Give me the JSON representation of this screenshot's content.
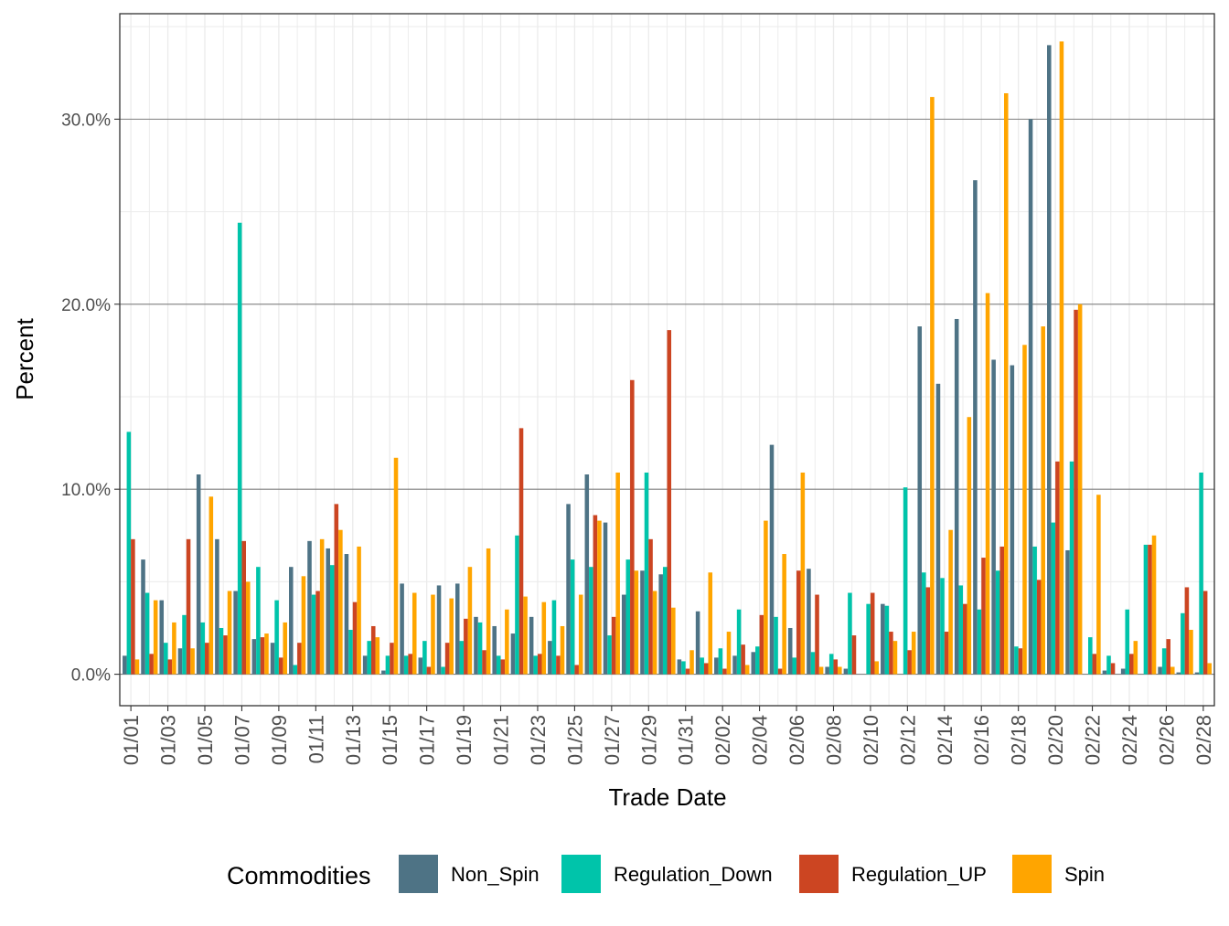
{
  "chart_data": {
    "type": "bar",
    "xlabel": "Trade Date",
    "ylabel": "Percent",
    "ylim": [
      -1.7,
      35.7
    ],
    "y_ticks": [
      0,
      10,
      20,
      30
    ],
    "y_tick_labels": [
      "0.0%",
      "10.0%",
      "20.0%",
      "30.0%"
    ],
    "grid": true,
    "legend": {
      "position": "bottom",
      "title": "Commodities"
    },
    "categories": [
      "01/01",
      "01/02",
      "01/03",
      "01/04",
      "01/05",
      "01/06",
      "01/07",
      "01/08",
      "01/09",
      "01/10",
      "01/11",
      "01/12",
      "01/13",
      "01/14",
      "01/15",
      "01/16",
      "01/17",
      "01/18",
      "01/19",
      "01/20",
      "01/21",
      "01/22",
      "01/23",
      "01/24",
      "01/25",
      "01/26",
      "01/27",
      "01/28",
      "01/29",
      "01/30",
      "01/31",
      "02/01",
      "02/02",
      "02/03",
      "02/04",
      "02/05",
      "02/06",
      "02/07",
      "02/08",
      "02/09",
      "02/10",
      "02/11",
      "02/12",
      "02/13",
      "02/14",
      "02/15",
      "02/16",
      "02/17",
      "02/18",
      "02/19",
      "02/20",
      "02/21",
      "02/22",
      "02/23",
      "02/24",
      "02/25",
      "02/26",
      "02/27",
      "02/28"
    ],
    "tick_labels": [
      "01/01",
      "01/03",
      "01/05",
      "01/07",
      "01/09",
      "01/11",
      "01/13",
      "01/15",
      "01/17",
      "01/19",
      "01/21",
      "01/23",
      "01/25",
      "01/27",
      "01/29",
      "01/31",
      "02/02",
      "02/04",
      "02/06",
      "02/08",
      "02/10",
      "02/12",
      "02/14",
      "02/16",
      "02/18",
      "02/20",
      "02/22",
      "02/24",
      "02/26",
      "02/28"
    ],
    "series": [
      {
        "name": "Non_Spin",
        "color": "#4e7385",
        "values": [
          1.0,
          6.2,
          4.0,
          1.4,
          10.8,
          7.3,
          4.5,
          1.9,
          1.7,
          5.8,
          7.2,
          6.8,
          6.5,
          1.0,
          0.2,
          4.9,
          0.9,
          4.8,
          4.9,
          3.1,
          2.6,
          2.2,
          3.1,
          1.8,
          9.2,
          10.8,
          8.2,
          4.3,
          5.6,
          5.4,
          0.8,
          3.4,
          0.9,
          1.0,
          1.2,
          12.4,
          2.5,
          5.7,
          0.4,
          0.3,
          0.0,
          3.8,
          0.0,
          18.8,
          15.7,
          19.2,
          26.7,
          17.0,
          16.7,
          30.0,
          34.0,
          6.7,
          0.0,
          0.2,
          0.3,
          0.0,
          0.4,
          0.1,
          0.1
        ]
      },
      {
        "name": "Regulation_Down",
        "color": "#00c4aa",
        "values": [
          13.1,
          4.4,
          1.7,
          3.2,
          2.8,
          2.5,
          24.4,
          5.8,
          4.0,
          0.5,
          4.3,
          5.9,
          2.4,
          1.8,
          1.0,
          1.0,
          1.8,
          0.4,
          1.8,
          2.8,
          1.0,
          7.5,
          1.0,
          4.0,
          6.2,
          5.8,
          2.1,
          6.2,
          10.9,
          5.8,
          0.7,
          0.9,
          1.4,
          3.5,
          1.5,
          3.1,
          0.9,
          1.2,
          1.1,
          4.4,
          3.8,
          3.7,
          10.1,
          5.5,
          5.2,
          4.8,
          3.5,
          5.6,
          1.5,
          6.9,
          8.2,
          11.5,
          2.0,
          1.0,
          3.5,
          7.0,
          1.4,
          3.3,
          10.9
        ]
      },
      {
        "name": "Regulation_UP",
        "color": "#cc4522",
        "values": [
          7.3,
          1.1,
          0.8,
          7.3,
          1.7,
          2.1,
          7.2,
          2.0,
          0.9,
          1.7,
          4.5,
          9.2,
          3.9,
          2.6,
          1.7,
          1.1,
          0.4,
          1.7,
          3.0,
          1.3,
          0.8,
          13.3,
          1.1,
          1.0,
          0.5,
          8.6,
          3.1,
          15.9,
          7.3,
          18.6,
          0.3,
          0.6,
          0.3,
          1.6,
          3.2,
          0.3,
          5.6,
          4.3,
          0.8,
          2.1,
          4.4,
          2.3,
          1.3,
          4.7,
          2.3,
          3.8,
          6.3,
          6.9,
          1.4,
          5.1,
          11.5,
          19.7,
          1.1,
          0.6,
          1.1,
          7.0,
          1.9,
          4.7,
          4.5
        ]
      },
      {
        "name": "Spin",
        "color": "#ffa500",
        "values": [
          0.8,
          4.0,
          2.8,
          1.4,
          9.6,
          4.5,
          5.0,
          2.2,
          2.8,
          5.3,
          7.3,
          7.8,
          6.9,
          2.0,
          11.7,
          4.4,
          4.3,
          4.1,
          5.8,
          6.8,
          3.5,
          4.2,
          3.9,
          2.6,
          4.3,
          8.3,
          10.9,
          5.6,
          4.5,
          3.6,
          1.3,
          5.5,
          2.3,
          0.5,
          8.3,
          6.5,
          10.9,
          0.4,
          0.4,
          0.0,
          0.7,
          1.8,
          2.3,
          31.2,
          7.8,
          13.9,
          20.6,
          31.4,
          17.8,
          18.8,
          34.2,
          20.0,
          9.7,
          0.0,
          1.8,
          7.5,
          0.4,
          2.4,
          0.6
        ]
      }
    ]
  }
}
